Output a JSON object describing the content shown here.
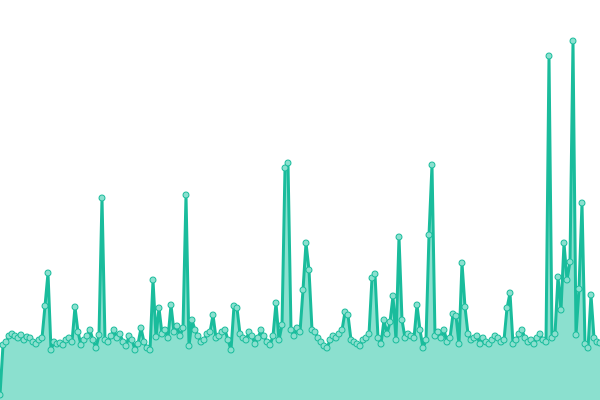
{
  "chart_data": {
    "type": "area",
    "title": "",
    "xlabel": "",
    "ylabel": "",
    "grid": false,
    "axes_visible": false,
    "ylim": [
      0,
      400
    ],
    "colors": {
      "line": "#1abc9c",
      "fill": "#8be0cf",
      "marker_fill": "#8be0cf",
      "marker_stroke": "#1abc9c"
    },
    "values": [
      5,
      55,
      58,
      64,
      66,
      64,
      62,
      65,
      60,
      63,
      62,
      58,
      56,
      60,
      62,
      94,
      127,
      50,
      58,
      56,
      57,
      55,
      60,
      62,
      58,
      93,
      68,
      55,
      60,
      64,
      70,
      60,
      52,
      65,
      202,
      60,
      58,
      64,
      70,
      62,
      66,
      58,
      54,
      64,
      60,
      50,
      56,
      72,
      58,
      52,
      50,
      120,
      63,
      92,
      66,
      70,
      62,
      95,
      68,
      74,
      64,
      72,
      205,
      54,
      80,
      70,
      64,
      58,
      60,
      66,
      68,
      85,
      62,
      64,
      68,
      70,
      60,
      50,
      94,
      92,
      66,
      62,
      60,
      68,
      64,
      56,
      62,
      70,
      64,
      58,
      55,
      64,
      97,
      60,
      75,
      232,
      237,
      70,
      64,
      72,
      68,
      110,
      157,
      130,
      70,
      68,
      62,
      58,
      54,
      52,
      60,
      64,
      62,
      66,
      70,
      88,
      85,
      60,
      58,
      56,
      54,
      60,
      62,
      66,
      122,
      126,
      62,
      56,
      80,
      66,
      78,
      104,
      60,
      163,
      80,
      62,
      66,
      64,
      62,
      95,
      70,
      52,
      60,
      165,
      235,
      64,
      68,
      62,
      70,
      58,
      62,
      86,
      84,
      56,
      137,
      93,
      66,
      60,
      62,
      64,
      56,
      62,
      58,
      56,
      60,
      64,
      62,
      58,
      60,
      92,
      107,
      56,
      60,
      66,
      70,
      62,
      58,
      60,
      56,
      62,
      66,
      60,
      58,
      344,
      62,
      66,
      123,
      90,
      157,
      120,
      138,
      359,
      65,
      111,
      197,
      56,
      52,
      105,
      62,
      58,
      57
    ]
  }
}
